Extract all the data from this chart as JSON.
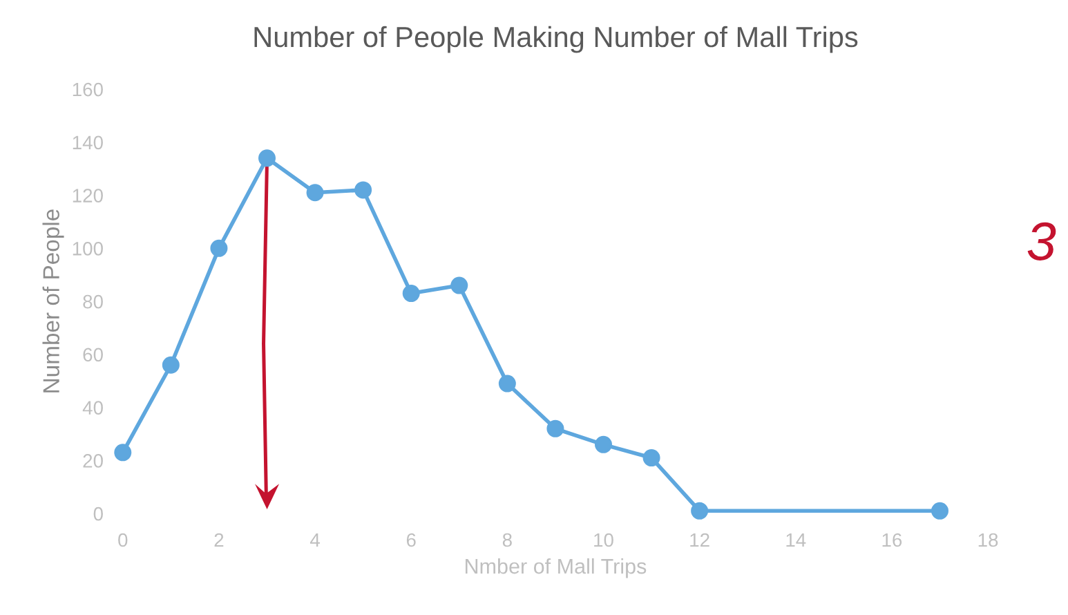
{
  "chart_data": {
    "type": "line",
    "title": "Number of People Making Number of Mall Trips",
    "xlabel": "Nmber of Mall Trips",
    "ylabel": "Number of People",
    "x": [
      0,
      1,
      2,
      3,
      4,
      5,
      6,
      7,
      8,
      9,
      10,
      11,
      12,
      17
    ],
    "series": [
      {
        "color": "#5ea7de",
        "values": [
          23,
          56,
          100,
          134,
          121,
          122,
          83,
          86,
          49,
          32,
          26,
          21,
          1,
          1
        ]
      }
    ],
    "xlim": [
      0,
      18
    ],
    "xticks": [
      0,
      2,
      4,
      6,
      8,
      10,
      12,
      14,
      16,
      18
    ],
    "ylim": [
      0,
      160
    ],
    "yticks": [
      0,
      20,
      40,
      60,
      80,
      100,
      120,
      140,
      160
    ],
    "grid": false,
    "legend": false,
    "marker": "circle",
    "line_style": "solid",
    "annotations": [
      "3"
    ]
  }
}
